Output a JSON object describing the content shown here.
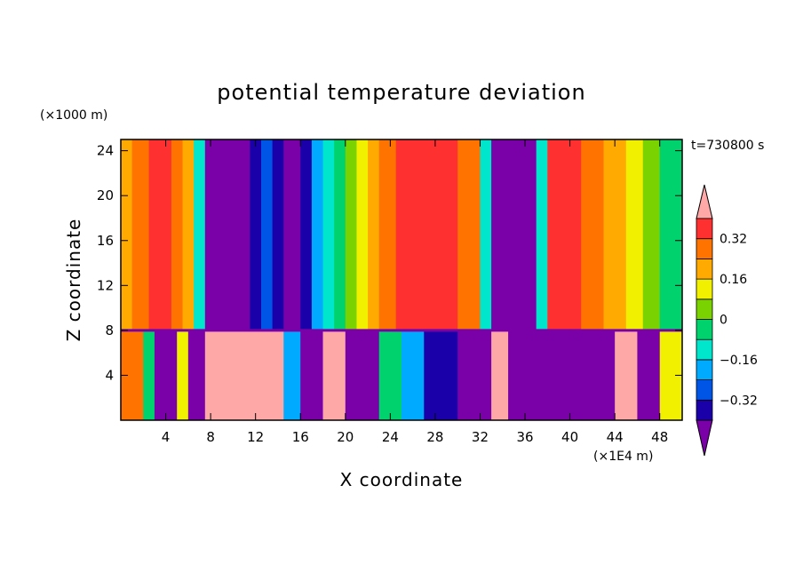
{
  "chart_data": {
    "type": "heatmap",
    "title": "potential temperature deviation",
    "xlabel": "X coordinate",
    "ylabel": "Z coordinate",
    "x_unit": "(×1E4 m)",
    "y_unit": "(×1000 m)",
    "time_label": "t=730800 s",
    "xlim": [
      0,
      50
    ],
    "ylim": [
      0,
      25
    ],
    "x_ticks": [
      "4",
      "8",
      "12",
      "16",
      "20",
      "24",
      "28",
      "32",
      "36",
      "40",
      "44",
      "48"
    ],
    "y_ticks": [
      "4",
      "8",
      "12",
      "16",
      "20",
      "24"
    ],
    "colorbar": {
      "labels": [
        "0.32",
        "0.16",
        "0",
        "−0.16",
        "−0.32"
      ],
      "colors": [
        "#7a00a8",
        "#1a00a8",
        "#0055e6",
        "#00aaff",
        "#00e6cc",
        "#00d26e",
        "#7ad200",
        "#f0f000",
        "#ffaa00",
        "#ff7300",
        "#ff3030",
        "#ffa8a8"
      ]
    },
    "regions": {
      "upper": [
        {
          "x": [
            0,
            1
          ],
          "level": 8
        },
        {
          "x": [
            1,
            2.5
          ],
          "level": 9
        },
        {
          "x": [
            2.5,
            4.5
          ],
          "level": 10
        },
        {
          "x": [
            4.5,
            5.5
          ],
          "level": 9
        },
        {
          "x": [
            5.5,
            6.5
          ],
          "level": 8
        },
        {
          "x": [
            6.5,
            7.5
          ],
          "level": 4
        },
        {
          "x": [
            7.5,
            11.5
          ],
          "level": 0
        },
        {
          "x": [
            11.5,
            12.5
          ],
          "level": 1
        },
        {
          "x": [
            12.5,
            13.5
          ],
          "level": 2
        },
        {
          "x": [
            13.5,
            14.5
          ],
          "level": 1
        },
        {
          "x": [
            14.5,
            16
          ],
          "level": 0
        },
        {
          "x": [
            16,
            17
          ],
          "level": 1
        },
        {
          "x": [
            17,
            18
          ],
          "level": 3
        },
        {
          "x": [
            18,
            19
          ],
          "level": 4
        },
        {
          "x": [
            19,
            20
          ],
          "level": 5
        },
        {
          "x": [
            20,
            21
          ],
          "level": 6
        },
        {
          "x": [
            21,
            22
          ],
          "level": 7
        },
        {
          "x": [
            22,
            23
          ],
          "level": 8
        },
        {
          "x": [
            23,
            24.5
          ],
          "level": 9
        },
        {
          "x": [
            24.5,
            30
          ],
          "level": 10
        },
        {
          "x": [
            30,
            32
          ],
          "level": 9
        },
        {
          "x": [
            32,
            33
          ],
          "level": 4
        },
        {
          "x": [
            33,
            37
          ],
          "level": 0
        },
        {
          "x": [
            37,
            38
          ],
          "level": 4
        },
        {
          "x": [
            38,
            41
          ],
          "level": 10
        },
        {
          "x": [
            41,
            43
          ],
          "level": 9
        },
        {
          "x": [
            43,
            45
          ],
          "level": 8
        },
        {
          "x": [
            45,
            46.5
          ],
          "level": 7
        },
        {
          "x": [
            46.5,
            48
          ],
          "level": 6
        },
        {
          "x": [
            48,
            50
          ],
          "level": 5
        }
      ],
      "lower": [
        {
          "x": [
            0,
            2
          ],
          "level": 9
        },
        {
          "x": [
            2,
            3
          ],
          "level": 5
        },
        {
          "x": [
            3,
            5
          ],
          "level": 0
        },
        {
          "x": [
            5,
            6
          ],
          "level": 7
        },
        {
          "x": [
            6,
            7.5
          ],
          "level": 0
        },
        {
          "x": [
            7.5,
            14.5
          ],
          "level": 11
        },
        {
          "x": [
            14.5,
            16
          ],
          "level": 3
        },
        {
          "x": [
            16,
            18
          ],
          "level": 0
        },
        {
          "x": [
            18,
            20
          ],
          "level": 11
        },
        {
          "x": [
            20,
            23
          ],
          "level": 0
        },
        {
          "x": [
            23,
            25
          ],
          "level": 5
        },
        {
          "x": [
            25,
            27
          ],
          "level": 3
        },
        {
          "x": [
            27,
            30
          ],
          "level": 1
        },
        {
          "x": [
            30,
            33
          ],
          "level": 0
        },
        {
          "x": [
            33,
            34.5
          ],
          "level": 11
        },
        {
          "x": [
            34.5,
            36
          ],
          "level": 0
        },
        {
          "x": [
            36,
            44
          ],
          "level": 0
        },
        {
          "x": [
            44,
            46
          ],
          "level": 11
        },
        {
          "x": [
            46,
            48
          ],
          "level": 0
        },
        {
          "x": [
            48,
            50
          ],
          "level": 7
        }
      ]
    }
  }
}
